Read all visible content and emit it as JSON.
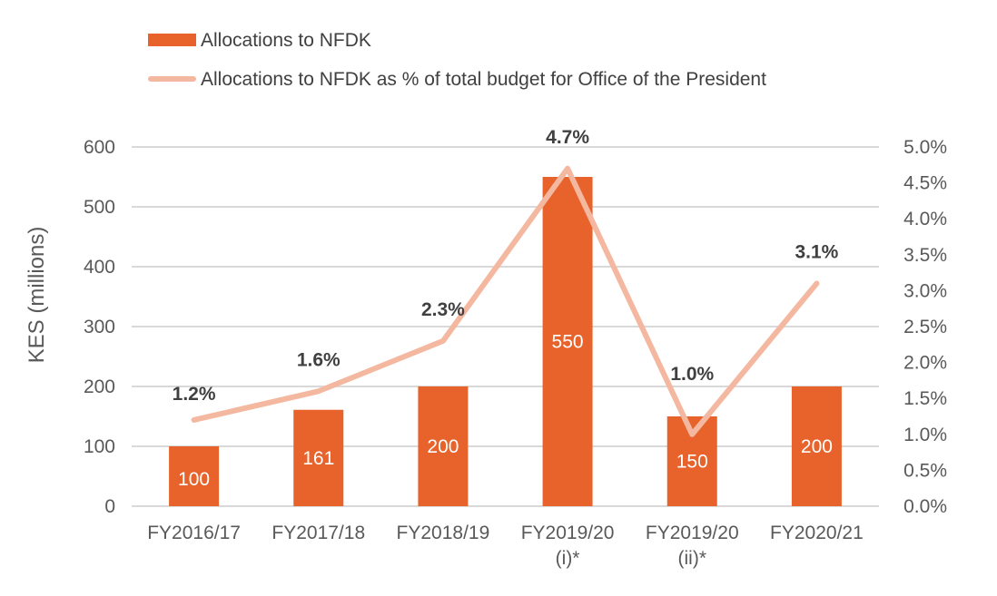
{
  "chart_data": {
    "type": "bar",
    "categories": [
      [
        "FY2016/17"
      ],
      [
        "FY2017/18"
      ],
      [
        "FY2018/19"
      ],
      [
        "FY2019/20",
        "(i)*"
      ],
      [
        "FY2019/20",
        "(ii)*"
      ],
      [
        "FY2020/21"
      ]
    ],
    "series": [
      {
        "name": "Allocations to NFDK",
        "type": "bar",
        "axis": "left",
        "color": "#E8632B",
        "values": [
          100,
          161,
          200,
          550,
          150,
          200
        ],
        "labels": [
          "100",
          "161",
          "200",
          "550",
          "150",
          "200"
        ]
      },
      {
        "name": "Allocations to NFDK as % of total budget for Office of the President",
        "type": "line",
        "axis": "right",
        "color": "#F4B8A0",
        "values": [
          1.2,
          1.6,
          2.3,
          4.7,
          1.0,
          3.1
        ],
        "labels": [
          "1.2%",
          "1.6%",
          "2.3%",
          "4.7%",
          "1.0%",
          "3.1%"
        ]
      }
    ],
    "ylabel": "KES (millions)",
    "ylim": [
      0,
      600
    ],
    "y_ticks": [
      "0",
      "100",
      "200",
      "300",
      "400",
      "500",
      "600"
    ],
    "y2lim": [
      0,
      5.0
    ],
    "y2_ticks": [
      "0.0%",
      "0.5%",
      "1.0%",
      "1.5%",
      "2.0%",
      "2.5%",
      "3.0%",
      "3.5%",
      "4.0%",
      "4.5%",
      "5.0%"
    ],
    "grid": true,
    "legend_position": "top"
  }
}
